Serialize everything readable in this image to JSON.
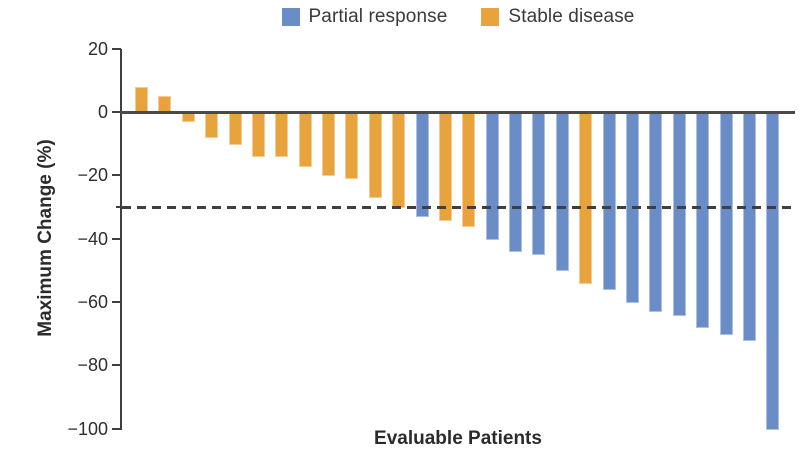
{
  "chart_data": {
    "type": "bar",
    "subtype": "waterfall",
    "title": "",
    "xlabel": "Evaluable Patients",
    "ylabel": "Maximum Change (%)",
    "ylim": [
      -100,
      20
    ],
    "grid": false,
    "legend_position": "top-center",
    "reference_line_y": -30,
    "reference_line_style": "dashed",
    "yticks": [
      {
        "value": 20,
        "label": "20"
      },
      {
        "value": 0,
        "label": "0"
      },
      {
        "value": -20,
        "label": "−20"
      },
      {
        "value": -40,
        "label": "−40"
      },
      {
        "value": -60,
        "label": "−60"
      },
      {
        "value": -80,
        "label": "−80"
      },
      {
        "value": -100,
        "label": "−100"
      }
    ],
    "legend": [
      {
        "key": "PR",
        "label": "Partial response",
        "color": "#6a8dc7"
      },
      {
        "key": "SD",
        "label": "Stable disease",
        "color": "#e8a33d"
      }
    ],
    "bars": [
      {
        "value": 8,
        "group": "SD"
      },
      {
        "value": 5,
        "group": "SD"
      },
      {
        "value": -3,
        "group": "SD"
      },
      {
        "value": -8,
        "group": "SD"
      },
      {
        "value": -10,
        "group": "SD"
      },
      {
        "value": -14,
        "group": "SD"
      },
      {
        "value": -14,
        "group": "SD"
      },
      {
        "value": -17,
        "group": "SD"
      },
      {
        "value": -20,
        "group": "SD"
      },
      {
        "value": -21,
        "group": "SD"
      },
      {
        "value": -27,
        "group": "SD"
      },
      {
        "value": -30,
        "group": "SD"
      },
      {
        "value": -33,
        "group": "PR"
      },
      {
        "value": -34,
        "group": "SD"
      },
      {
        "value": -36,
        "group": "SD"
      },
      {
        "value": -40,
        "group": "PR"
      },
      {
        "value": -44,
        "group": "PR"
      },
      {
        "value": -45,
        "group": "PR"
      },
      {
        "value": -50,
        "group": "PR"
      },
      {
        "value": -54,
        "group": "SD"
      },
      {
        "value": -56,
        "group": "PR"
      },
      {
        "value": -60,
        "group": "PR"
      },
      {
        "value": -63,
        "group": "PR"
      },
      {
        "value": -64,
        "group": "PR"
      },
      {
        "value": -68,
        "group": "PR"
      },
      {
        "value": -70,
        "group": "PR"
      },
      {
        "value": -72,
        "group": "PR"
      },
      {
        "value": -100,
        "group": "PR"
      }
    ]
  }
}
